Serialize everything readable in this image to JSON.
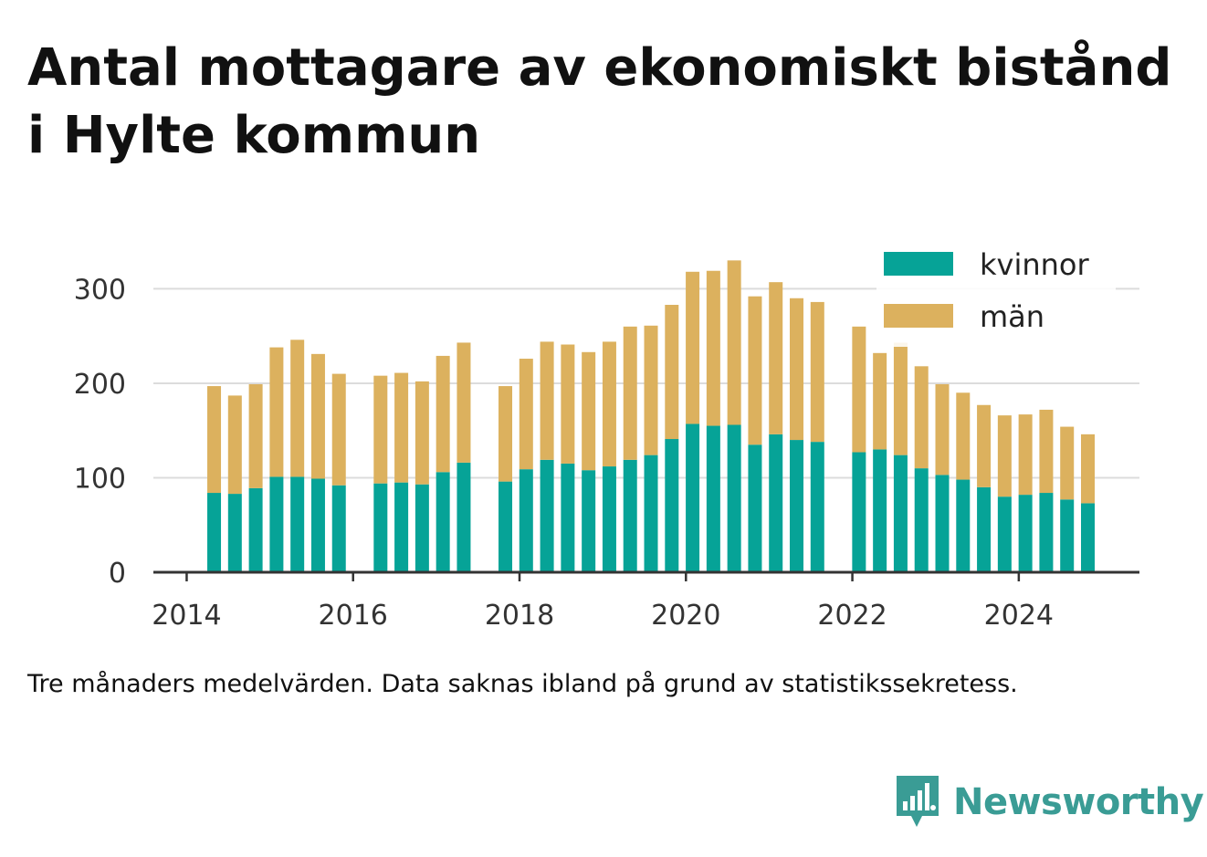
{
  "title": "Antal mottagare av ekonomiskt bistånd i Hylte kommun",
  "footnote": "Tre månaders medelvärden. Data saknas ibland på grund av statistikssekretess.",
  "brand": {
    "name": "Newsworthy"
  },
  "colors": {
    "kvinnor": "#06a397",
    "man": "#dcb15e",
    "grid": "#dcdcdc",
    "axis": "#333333",
    "brand": "#3a9c95"
  },
  "chart_data": {
    "type": "bar",
    "stacked": true,
    "title": "Antal mottagare av ekonomiskt bistånd i Hylte kommun",
    "xlabel": "",
    "ylabel": "",
    "ylim": [
      0,
      340
    ],
    "xlim": [
      2013.6,
      2025.45
    ],
    "yticks": [
      0,
      100,
      200,
      300
    ],
    "xticks": [
      2014,
      2016,
      2018,
      2020,
      2022,
      2024
    ],
    "legend": {
      "position": "top-right",
      "entries": [
        "kvinnor",
        "män"
      ]
    },
    "x": [
      2014.33,
      2014.58,
      2014.83,
      2015.08,
      2015.33,
      2015.58,
      2015.83,
      2016.33,
      2016.58,
      2016.83,
      2017.08,
      2017.33,
      2017.83,
      2018.08,
      2018.33,
      2018.58,
      2018.83,
      2019.08,
      2019.33,
      2019.58,
      2019.83,
      2020.08,
      2020.33,
      2020.58,
      2020.83,
      2021.08,
      2021.33,
      2021.58,
      2022.08,
      2022.33,
      2022.58,
      2022.83,
      2023.08,
      2023.33,
      2023.58,
      2023.83,
      2024.08,
      2024.33,
      2024.58,
      2024.83
    ],
    "series": [
      {
        "name": "kvinnor",
        "values": [
          84,
          83,
          89,
          101,
          101,
          99,
          92,
          94,
          95,
          93,
          106,
          116,
          96,
          109,
          119,
          115,
          108,
          112,
          119,
          124,
          141,
          157,
          155,
          156,
          135,
          146,
          140,
          138,
          127,
          130,
          124,
          110,
          103,
          98,
          90,
          80,
          82,
          84,
          77,
          73
        ]
      },
      {
        "name": "män",
        "values": [
          113,
          104,
          110,
          137,
          145,
          132,
          118,
          114,
          116,
          109,
          123,
          127,
          101,
          117,
          125,
          126,
          125,
          132,
          141,
          137,
          142,
          161,
          164,
          174,
          157,
          161,
          150,
          148,
          133,
          102,
          119,
          108,
          96,
          92,
          87,
          86,
          85,
          88,
          77,
          73
        ]
      }
    ]
  }
}
